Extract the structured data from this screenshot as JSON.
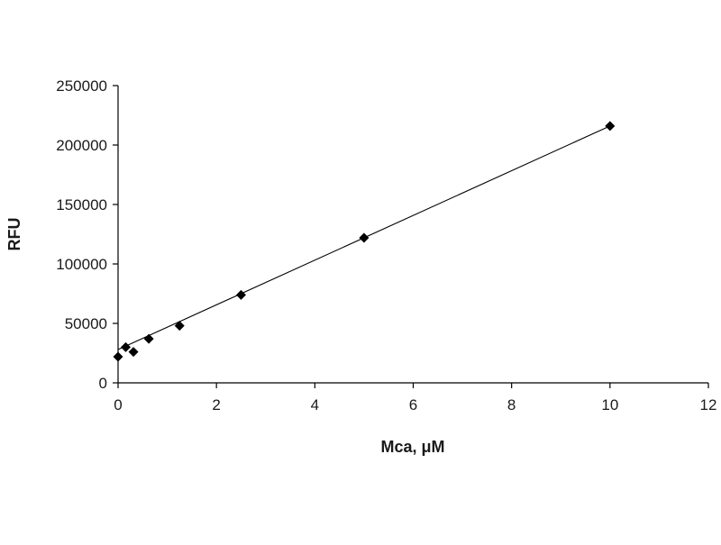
{
  "chart_data": {
    "type": "scatter",
    "title": "",
    "xlabel": "Mca, μM",
    "ylabel": "RFU",
    "xlim": [
      0,
      12
    ],
    "ylim": [
      0,
      250000
    ],
    "x_ticks": [
      0,
      2,
      4,
      6,
      8,
      10,
      12
    ],
    "y_ticks": [
      0,
      50000,
      100000,
      150000,
      200000,
      250000
    ],
    "grid": false,
    "legend": "none",
    "marker": "diamond",
    "colors": {
      "marker": "#000000",
      "line": "#000000",
      "axis": "#000000"
    },
    "series": [
      {
        "x": [
          0,
          0.156,
          0.3125,
          0.625,
          1.25,
          2.5,
          5,
          10
        ],
        "y": [
          22000,
          30000,
          26000,
          37000,
          48000,
          74000,
          122000,
          216000
        ]
      }
    ],
    "trendline": {
      "type": "linear",
      "x": [
        0,
        10
      ],
      "y": [
        28000,
        216000
      ]
    }
  }
}
